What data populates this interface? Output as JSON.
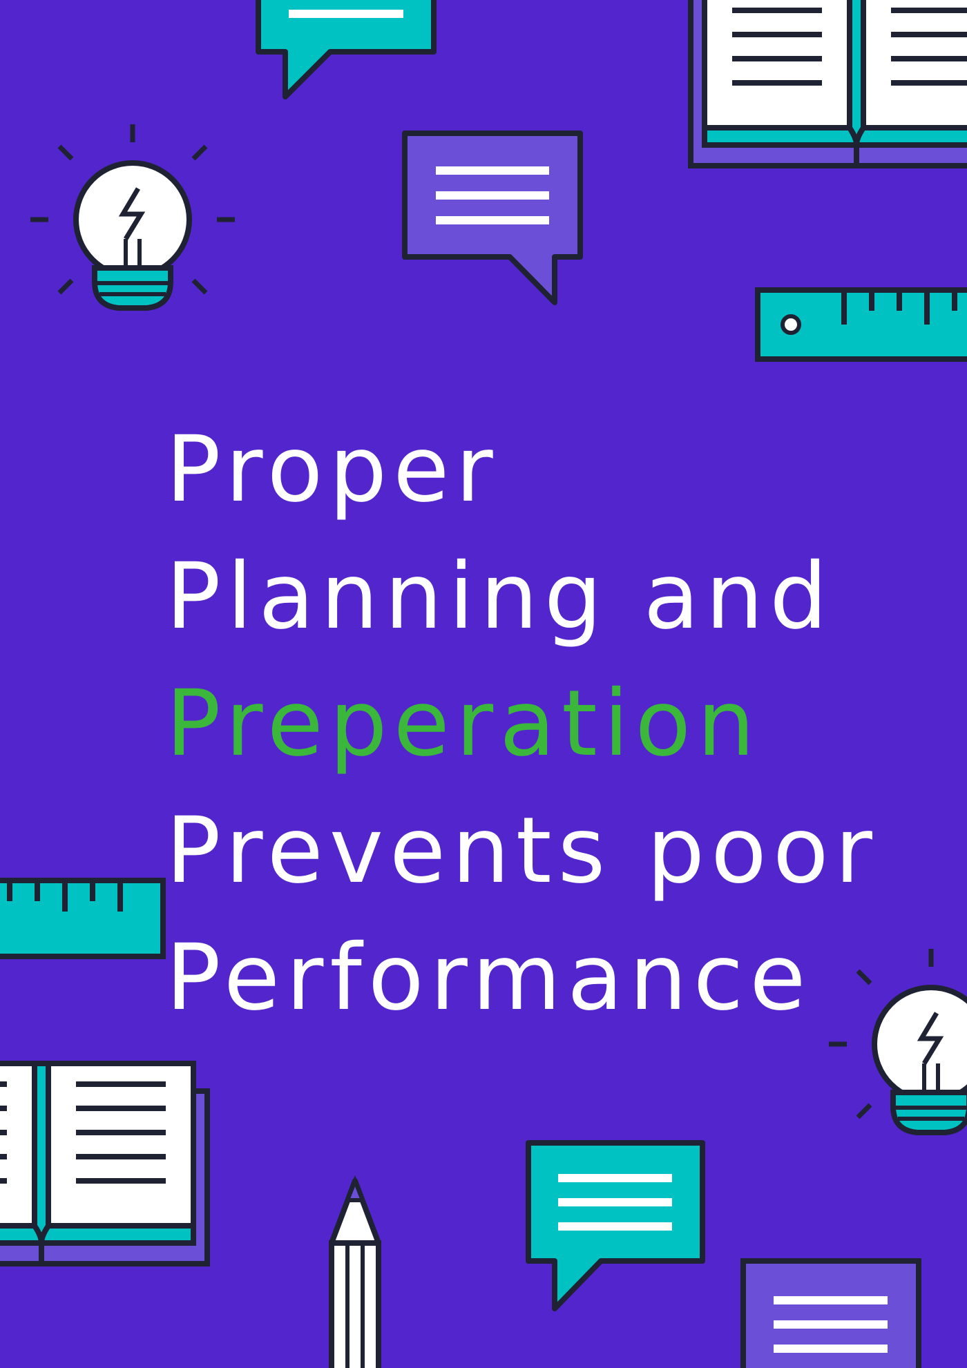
{
  "poster": {
    "quote_lines": [
      "Proper",
      "Planning and",
      "Preperation",
      "Prevents poor",
      "Performance"
    ],
    "highlighted_line_index": 2
  },
  "colors": {
    "background": "#5226CC",
    "text": "#FFFFFF",
    "highlight": "#3BB73C",
    "teal": "#00C2C2",
    "light_purple": "#6B4FD6",
    "outline": "#1F2233",
    "page_white": "#FFFFFF"
  },
  "decorations": [
    "speech-bubble-icon",
    "open-book-icon",
    "lightbulb-icon",
    "ruler-icon",
    "pencil-icon"
  ]
}
